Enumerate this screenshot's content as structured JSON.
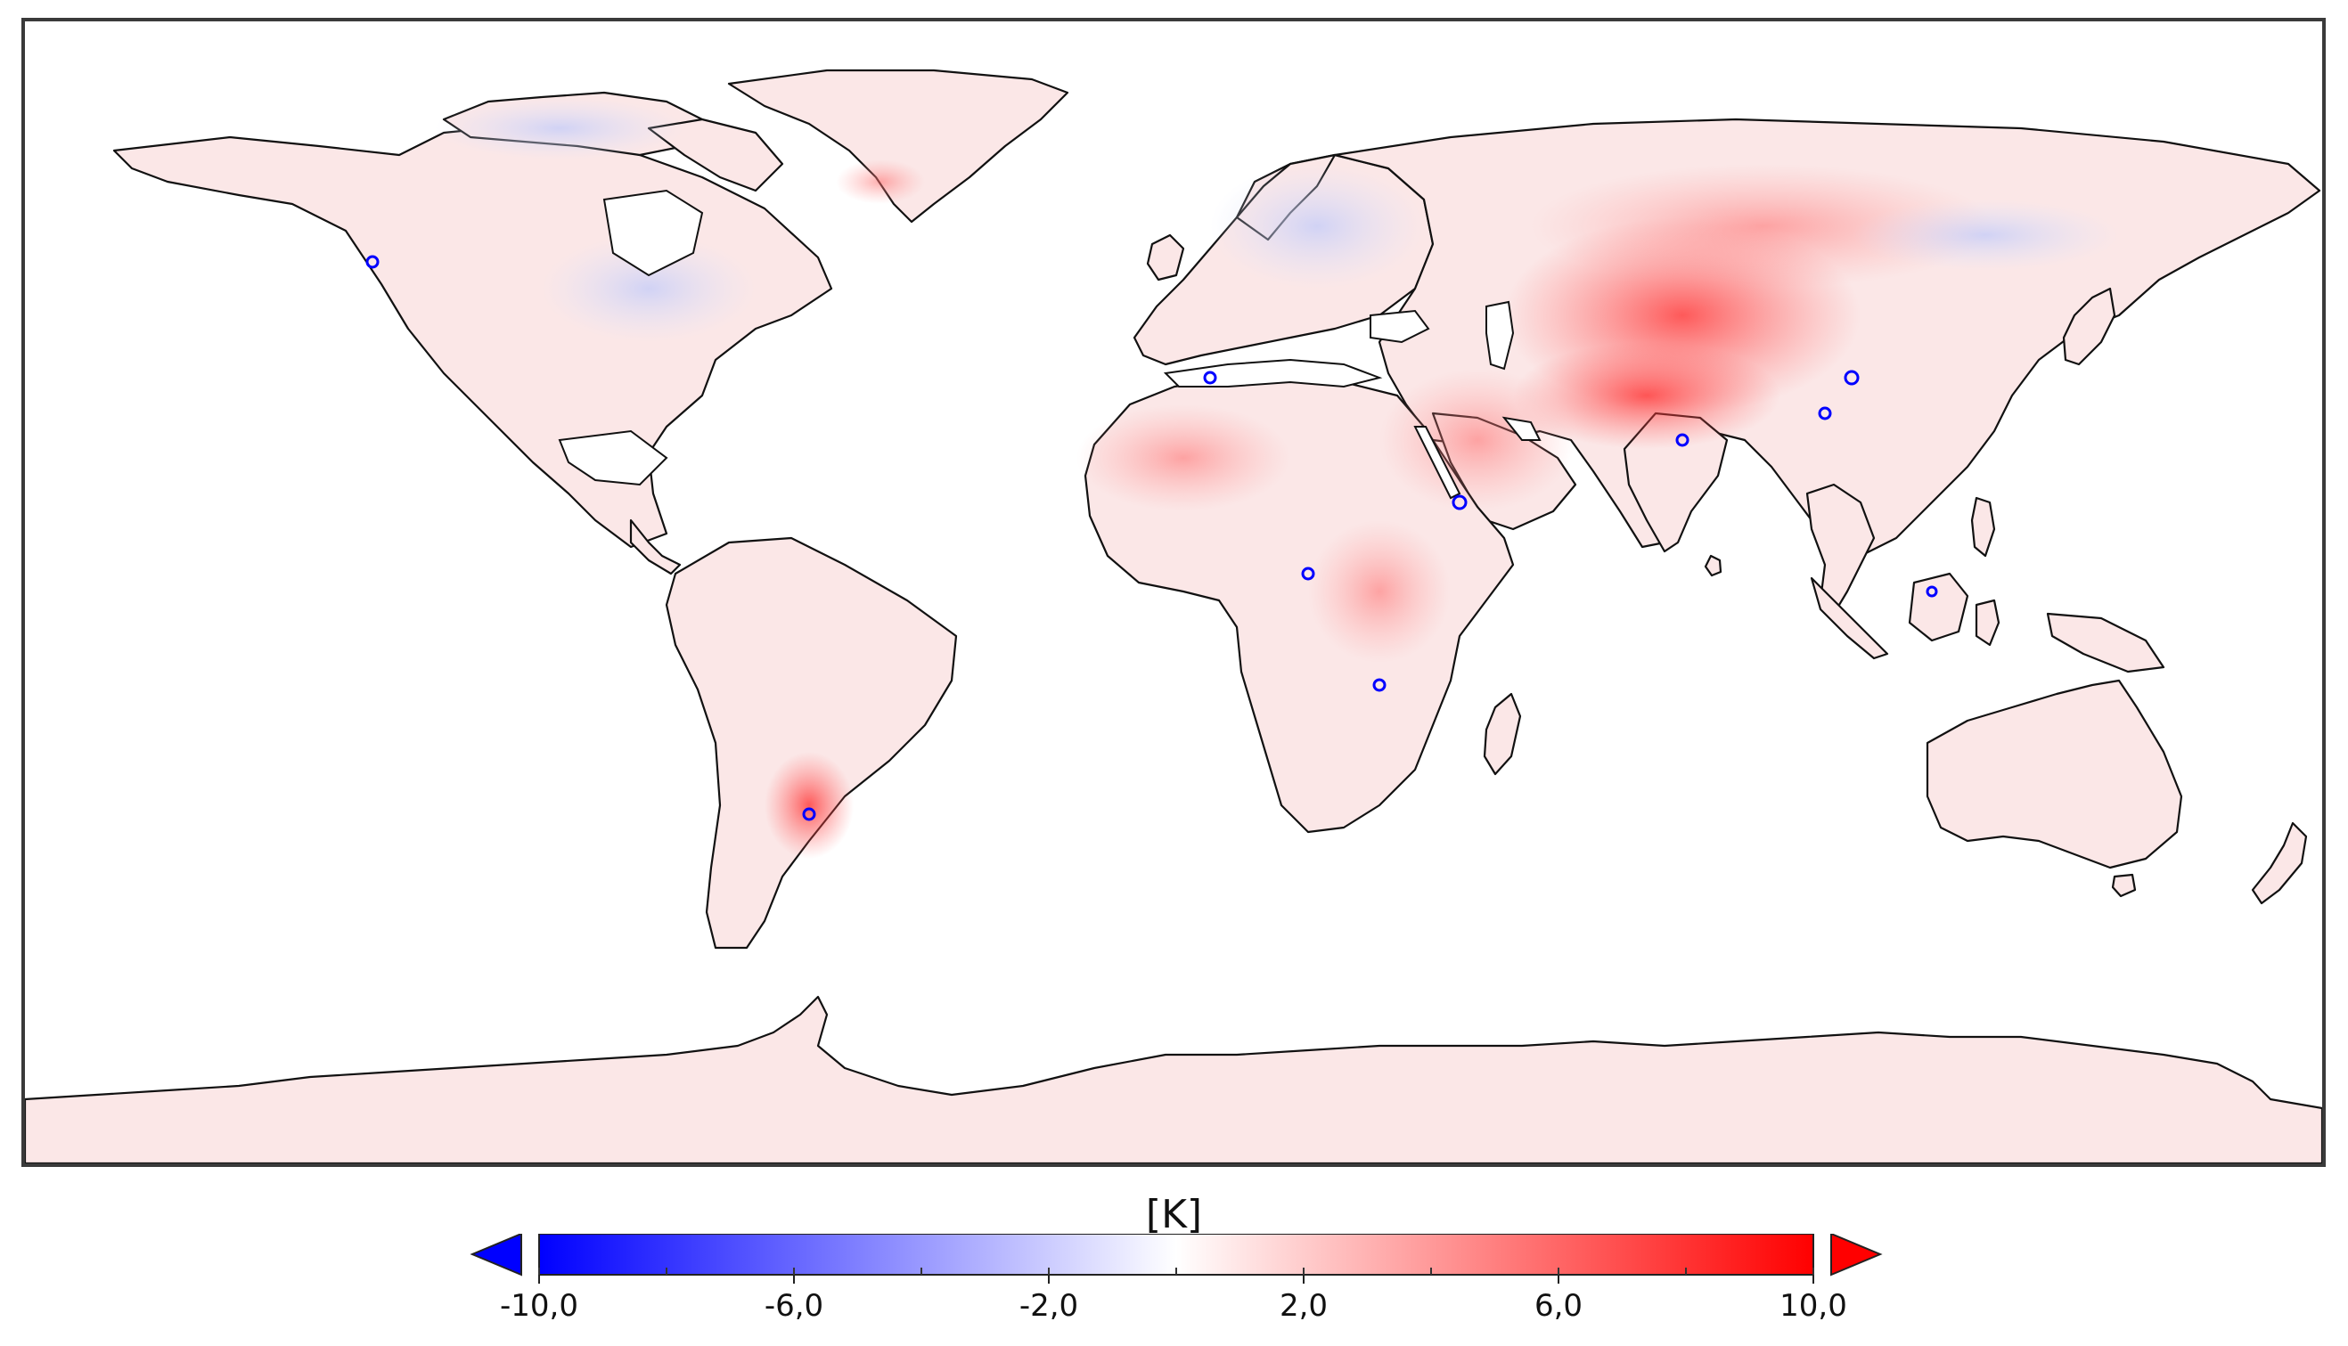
{
  "map": {
    "projection": "equirectangular",
    "extent": {
      "lon": [
        -180,
        180
      ],
      "lat": [
        -90,
        90
      ]
    },
    "land_color": "#fbe7e7",
    "ocean_color": "#ffffff",
    "coast_color": "#111111"
  },
  "colorbar": {
    "unit": "[K]",
    "min": -10,
    "max": 10,
    "extend": "both",
    "cmap": "bwr",
    "low_color": "#0000ff",
    "mid_color": "#ffffff",
    "high_color": "#ff0000",
    "ticks": [
      {
        "value": -10,
        "label": "-10,0"
      },
      {
        "value": -6,
        "label": "-6,0"
      },
      {
        "value": -2,
        "label": "-2,0"
      },
      {
        "value": 2,
        "label": "2,0"
      },
      {
        "value": 6,
        "label": "6,0"
      },
      {
        "value": 10,
        "label": "10,0"
      }
    ]
  }
}
